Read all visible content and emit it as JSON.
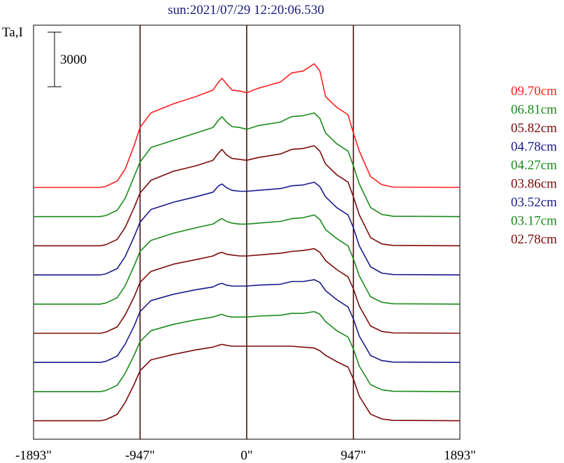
{
  "chart_data": {
    "type": "line",
    "title": "sun:2021/07/29 12:20:06.530",
    "ylabel": "Ta,I",
    "scale_bar_label": "3000",
    "x_ticks": [
      "-1893\"",
      "-947\"",
      "0\"",
      "947\"",
      "1893\""
    ],
    "x_tick_values": [
      -1893,
      -947,
      0,
      947,
      1893
    ],
    "xlim": [
      -1893,
      1893
    ],
    "vertical_lines_at": [
      -947,
      0,
      947
    ],
    "colors": {
      "title": "#1a1a7a",
      "frame": "#000000",
      "vlines": "#3a0000"
    },
    "series": [
      {
        "name": "09.70cm",
        "color": "#ff2020",
        "offset": 0,
        "profile": [
          [
            -1893,
            0
          ],
          [
            -1300,
            0
          ],
          [
            -1250,
            60
          ],
          [
            -1150,
            350
          ],
          [
            -1080,
            1000
          ],
          [
            -1000,
            2300
          ],
          [
            -947,
            3300
          ],
          [
            -850,
            4100
          ],
          [
            -650,
            4600
          ],
          [
            -450,
            5000
          ],
          [
            -300,
            5350
          ],
          [
            -250,
            5800
          ],
          [
            -220,
            6000
          ],
          [
            -180,
            5700
          ],
          [
            -130,
            5350
          ],
          [
            -60,
            5300
          ],
          [
            0,
            5200
          ],
          [
            100,
            5450
          ],
          [
            300,
            5800
          ],
          [
            400,
            6300
          ],
          [
            500,
            6400
          ],
          [
            600,
            6800
          ],
          [
            650,
            6400
          ],
          [
            700,
            5000
          ],
          [
            800,
            4400
          ],
          [
            900,
            4000
          ],
          [
            947,
            3000
          ],
          [
            1000,
            2000
          ],
          [
            1100,
            600
          ],
          [
            1200,
            150
          ],
          [
            1300,
            20
          ],
          [
            1893,
            0
          ]
        ]
      },
      {
        "name": "06.81cm",
        "color": "#1a8a1a",
        "offset": 1,
        "profile": [
          [
            -1893,
            0
          ],
          [
            -1300,
            0
          ],
          [
            -1250,
            60
          ],
          [
            -1150,
            350
          ],
          [
            -1080,
            1000
          ],
          [
            -1000,
            2200
          ],
          [
            -947,
            3000
          ],
          [
            -850,
            3800
          ],
          [
            -650,
            4200
          ],
          [
            -450,
            4600
          ],
          [
            -300,
            4900
          ],
          [
            -250,
            5300
          ],
          [
            -220,
            5500
          ],
          [
            -180,
            5200
          ],
          [
            -130,
            4950
          ],
          [
            -60,
            4900
          ],
          [
            0,
            4800
          ],
          [
            100,
            5000
          ],
          [
            300,
            5200
          ],
          [
            400,
            5500
          ],
          [
            500,
            5550
          ],
          [
            600,
            5700
          ],
          [
            650,
            5400
          ],
          [
            700,
            4600
          ],
          [
            800,
            4000
          ],
          [
            900,
            3600
          ],
          [
            947,
            2800
          ],
          [
            1000,
            1800
          ],
          [
            1100,
            500
          ],
          [
            1200,
            120
          ],
          [
            1300,
            20
          ],
          [
            1893,
            0
          ]
        ]
      },
      {
        "name": "05.82cm",
        "color": "#7a0a0a",
        "offset": 2,
        "profile": [
          [
            -1893,
            0
          ],
          [
            -1300,
            0
          ],
          [
            -1250,
            60
          ],
          [
            -1150,
            350
          ],
          [
            -1080,
            1000
          ],
          [
            -1000,
            2100
          ],
          [
            -947,
            2900
          ],
          [
            -850,
            3600
          ],
          [
            -650,
            4100
          ],
          [
            -450,
            4400
          ],
          [
            -300,
            4700
          ],
          [
            -250,
            5100
          ],
          [
            -220,
            5300
          ],
          [
            -180,
            5000
          ],
          [
            -130,
            4800
          ],
          [
            -60,
            4750
          ],
          [
            0,
            4700
          ],
          [
            100,
            4850
          ],
          [
            300,
            5050
          ],
          [
            400,
            5300
          ],
          [
            500,
            5350
          ],
          [
            600,
            5500
          ],
          [
            650,
            5200
          ],
          [
            700,
            4500
          ],
          [
            800,
            3900
          ],
          [
            900,
            3500
          ],
          [
            947,
            2700
          ],
          [
            1000,
            1700
          ],
          [
            1100,
            450
          ],
          [
            1200,
            100
          ],
          [
            1300,
            20
          ],
          [
            1893,
            0
          ]
        ]
      },
      {
        "name": "04.78cm",
        "color": "#1a1a8a",
        "offset": 3,
        "profile": [
          [
            -1893,
            0
          ],
          [
            -1300,
            0
          ],
          [
            -1250,
            60
          ],
          [
            -1150,
            350
          ],
          [
            -1080,
            1000
          ],
          [
            -1000,
            2100
          ],
          [
            -947,
            2900
          ],
          [
            -850,
            3600
          ],
          [
            -650,
            4000
          ],
          [
            -450,
            4300
          ],
          [
            -300,
            4550
          ],
          [
            -250,
            4900
          ],
          [
            -220,
            5000
          ],
          [
            -180,
            4800
          ],
          [
            -130,
            4650
          ],
          [
            -60,
            4600
          ],
          [
            0,
            4600
          ],
          [
            100,
            4650
          ],
          [
            300,
            4750
          ],
          [
            400,
            4900
          ],
          [
            500,
            4950
          ],
          [
            600,
            5100
          ],
          [
            650,
            4850
          ],
          [
            700,
            4300
          ],
          [
            800,
            3700
          ],
          [
            900,
            3300
          ],
          [
            947,
            2600
          ],
          [
            1000,
            1600
          ],
          [
            1100,
            450
          ],
          [
            1200,
            100
          ],
          [
            1300,
            20
          ],
          [
            1893,
            0
          ]
        ]
      },
      {
        "name": "04.27cm",
        "color": "#1a8a1a",
        "offset": 4,
        "profile": [
          [
            -1893,
            0
          ],
          [
            -1300,
            0
          ],
          [
            -1250,
            60
          ],
          [
            -1150,
            350
          ],
          [
            -1080,
            1000
          ],
          [
            -1000,
            2100
          ],
          [
            -947,
            2900
          ],
          [
            -850,
            3500
          ],
          [
            -650,
            3900
          ],
          [
            -450,
            4200
          ],
          [
            -300,
            4400
          ],
          [
            -250,
            4600
          ],
          [
            -220,
            4700
          ],
          [
            -180,
            4550
          ],
          [
            -130,
            4450
          ],
          [
            -60,
            4400
          ],
          [
            0,
            4400
          ],
          [
            100,
            4450
          ],
          [
            300,
            4550
          ],
          [
            400,
            4700
          ],
          [
            500,
            4750
          ],
          [
            600,
            4900
          ],
          [
            650,
            4650
          ],
          [
            700,
            4100
          ],
          [
            800,
            3600
          ],
          [
            900,
            3200
          ],
          [
            947,
            2500
          ],
          [
            1000,
            1550
          ],
          [
            1100,
            400
          ],
          [
            1200,
            100
          ],
          [
            1300,
            20
          ],
          [
            1893,
            0
          ]
        ]
      },
      {
        "name": "03.86cm",
        "color": "#7a0a0a",
        "offset": 5,
        "profile": [
          [
            -1893,
            0
          ],
          [
            -1300,
            0
          ],
          [
            -1250,
            60
          ],
          [
            -1150,
            350
          ],
          [
            -1080,
            1000
          ],
          [
            -1000,
            2000
          ],
          [
            -947,
            2800
          ],
          [
            -850,
            3400
          ],
          [
            -650,
            3800
          ],
          [
            -450,
            4050
          ],
          [
            -300,
            4250
          ],
          [
            -250,
            4400
          ],
          [
            -220,
            4450
          ],
          [
            -180,
            4350
          ],
          [
            -130,
            4300
          ],
          [
            -60,
            4250
          ],
          [
            0,
            4250
          ],
          [
            100,
            4300
          ],
          [
            300,
            4400
          ],
          [
            400,
            4500
          ],
          [
            500,
            4550
          ],
          [
            600,
            4650
          ],
          [
            650,
            4450
          ],
          [
            700,
            4000
          ],
          [
            800,
            3500
          ],
          [
            900,
            3100
          ],
          [
            947,
            2450
          ],
          [
            1000,
            1500
          ],
          [
            1100,
            400
          ],
          [
            1200,
            100
          ],
          [
            1300,
            20
          ],
          [
            1893,
            0
          ]
        ]
      },
      {
        "name": "03.52cm",
        "color": "#1a1a8a",
        "offset": 6,
        "profile": [
          [
            -1893,
            0
          ],
          [
            -1300,
            0
          ],
          [
            -1250,
            60
          ],
          [
            -1150,
            350
          ],
          [
            -1080,
            1000
          ],
          [
            -1000,
            2000
          ],
          [
            -947,
            2800
          ],
          [
            -850,
            3400
          ],
          [
            -650,
            3750
          ],
          [
            -450,
            4000
          ],
          [
            -300,
            4150
          ],
          [
            -250,
            4300
          ],
          [
            -220,
            4350
          ],
          [
            -180,
            4250
          ],
          [
            -130,
            4200
          ],
          [
            -60,
            4200
          ],
          [
            0,
            4200
          ],
          [
            100,
            4250
          ],
          [
            300,
            4300
          ],
          [
            400,
            4450
          ],
          [
            500,
            4450
          ],
          [
            600,
            4550
          ],
          [
            650,
            4400
          ],
          [
            700,
            3950
          ],
          [
            800,
            3450
          ],
          [
            900,
            3050
          ],
          [
            947,
            2400
          ],
          [
            1000,
            1450
          ],
          [
            1100,
            380
          ],
          [
            1200,
            100
          ],
          [
            1300,
            20
          ],
          [
            1893,
            0
          ]
        ]
      },
      {
        "name": "03.17cm",
        "color": "#1a8a1a",
        "offset": 7,
        "profile": [
          [
            -1893,
            0
          ],
          [
            -1300,
            0
          ],
          [
            -1250,
            60
          ],
          [
            -1150,
            350
          ],
          [
            -1080,
            1000
          ],
          [
            -1000,
            2000
          ],
          [
            -947,
            2750
          ],
          [
            -850,
            3350
          ],
          [
            -650,
            3700
          ],
          [
            -450,
            3950
          ],
          [
            -300,
            4100
          ],
          [
            -250,
            4200
          ],
          [
            -220,
            4250
          ],
          [
            -180,
            4150
          ],
          [
            -130,
            4100
          ],
          [
            -60,
            4100
          ],
          [
            0,
            4100
          ],
          [
            100,
            4150
          ],
          [
            300,
            4200
          ],
          [
            400,
            4300
          ],
          [
            500,
            4300
          ],
          [
            600,
            4400
          ],
          [
            650,
            4250
          ],
          [
            700,
            3850
          ],
          [
            800,
            3350
          ],
          [
            900,
            3000
          ],
          [
            947,
            2350
          ],
          [
            1000,
            1400
          ],
          [
            1100,
            380
          ],
          [
            1200,
            100
          ],
          [
            1300,
            20
          ],
          [
            1893,
            0
          ]
        ]
      },
      {
        "name": "02.78cm",
        "color": "#7a0a0a",
        "offset": 8,
        "profile": [
          [
            -1893,
            0
          ],
          [
            -1300,
            0
          ],
          [
            -1250,
            60
          ],
          [
            -1150,
            350
          ],
          [
            -1080,
            1000
          ],
          [
            -1000,
            2000
          ],
          [
            -947,
            2750
          ],
          [
            -850,
            3350
          ],
          [
            -650,
            3650
          ],
          [
            -450,
            3900
          ],
          [
            -300,
            4050
          ],
          [
            -250,
            4150
          ],
          [
            -220,
            4200
          ],
          [
            -180,
            4150
          ],
          [
            -130,
            4100
          ],
          [
            -60,
            4100
          ],
          [
            0,
            4100
          ],
          [
            100,
            4100
          ],
          [
            300,
            4100
          ],
          [
            400,
            4100
          ],
          [
            500,
            4050
          ],
          [
            600,
            4000
          ],
          [
            650,
            3850
          ],
          [
            700,
            3600
          ],
          [
            800,
            3250
          ],
          [
            900,
            2950
          ],
          [
            947,
            2300
          ],
          [
            1000,
            1350
          ],
          [
            1100,
            360
          ],
          [
            1200,
            100
          ],
          [
            1300,
            20
          ],
          [
            1893,
            0
          ]
        ]
      }
    ]
  }
}
